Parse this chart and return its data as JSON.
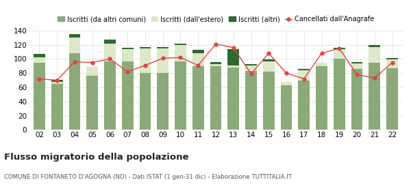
{
  "years": [
    "02",
    "03",
    "04",
    "05",
    "06",
    "07",
    "08",
    "09",
    "10",
    "11",
    "12",
    "13",
    "14",
    "15",
    "16",
    "17",
    "18",
    "19",
    "20",
    "21",
    "22"
  ],
  "iscritti_comuni": [
    95,
    65,
    108,
    76,
    97,
    97,
    80,
    80,
    97,
    90,
    90,
    88,
    83,
    82,
    63,
    70,
    90,
    100,
    86,
    95,
    87
  ],
  "iscritti_estero": [
    7,
    3,
    22,
    13,
    25,
    17,
    35,
    35,
    23,
    18,
    3,
    3,
    8,
    15,
    5,
    14,
    5,
    14,
    8,
    22,
    12
  ],
  "iscritti_altri": [
    5,
    3,
    5,
    0,
    5,
    2,
    2,
    2,
    2,
    5,
    3,
    23,
    2,
    2,
    0,
    2,
    0,
    2,
    2,
    3,
    2
  ],
  "cancellati": [
    72,
    70,
    96,
    95,
    100,
    82,
    91,
    101,
    102,
    91,
    121,
    116,
    79,
    108,
    80,
    72,
    108,
    115,
    78,
    73,
    95
  ],
  "color_comuni": "#8aaa78",
  "color_estero": "#dce8c8",
  "color_altri": "#2d6a2d",
  "color_cancellati": "#e84040",
  "title": "Flusso migratorio della popolazione",
  "subtitle": "COMUNE DI FONTANETO D'AGOGNA (NO) - Dati ISTAT (1 gen-31 dic) - Elaborazione TUTTITALIA.IT",
  "legend_labels": [
    "Iscritti (da altri comuni)",
    "Iscritti (dall'estero)",
    "Iscritti (altri)",
    "Cancellati dall'Anagrafe"
  ],
  "ylim": [
    0,
    140
  ],
  "yticks": [
    0,
    20,
    40,
    60,
    80,
    100,
    120,
    140
  ],
  "bg_color": "#ffffff",
  "grid_color": "#cccccc"
}
